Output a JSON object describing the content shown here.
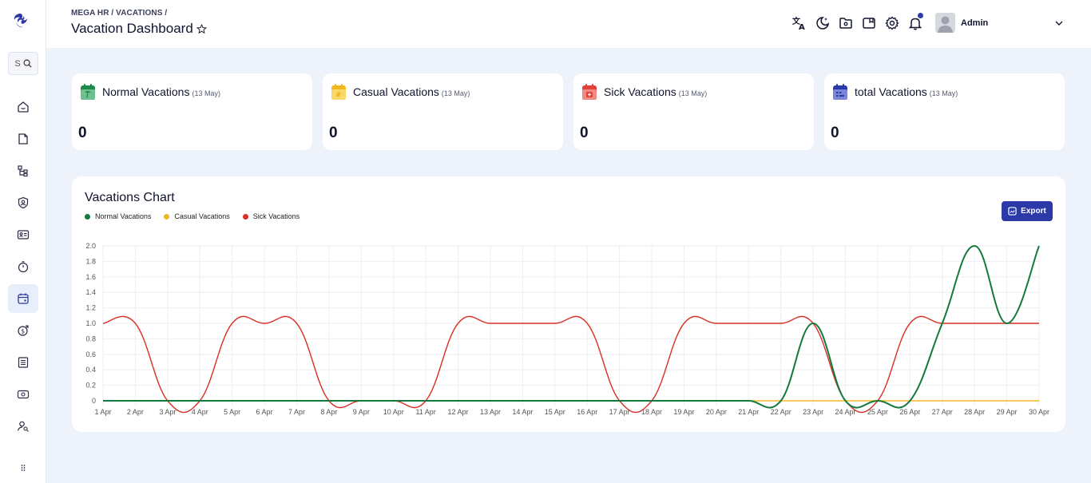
{
  "header": {
    "breadcrumb": "MEGA HR / VACATIONS /",
    "title": "Vacation Dashboard",
    "user_name": "Admin",
    "icons": [
      "translate-icon",
      "dark-mode-icon",
      "folder-icon",
      "wallet-icon",
      "settings-icon",
      "bell-icon"
    ]
  },
  "sidebar": {
    "search_placeholder": "S",
    "items": [
      "home-icon",
      "document-icon",
      "org-tree-icon",
      "contact-icon",
      "id-card-icon",
      "timer-icon",
      "calendar-icon",
      "payroll-icon",
      "list-icon",
      "money-icon",
      "user-search-icon"
    ],
    "active": "calendar-icon"
  },
  "cards": [
    {
      "title": "Normal Vacations",
      "sub": "(13 May)",
      "value": "0",
      "color": "#1e8a4c"
    },
    {
      "title": "Casual Vacations",
      "sub": "(13 May)",
      "value": "0",
      "color": "#f2b820"
    },
    {
      "title": "Sick Vacations",
      "sub": "(13 May)",
      "value": "0",
      "color": "#e0413a"
    },
    {
      "title": "total Vacations",
      "sub": "(13 May)",
      "value": "0",
      "color": "#2b3aa8"
    }
  ],
  "chart": {
    "title": "Vacations Chart",
    "export_label": "Export"
  },
  "chart_data": {
    "type": "line",
    "x": [
      "1 Apr",
      "2 Apr",
      "3 Apr",
      "4 Apr",
      "5 Apr",
      "6 Apr",
      "7 Apr",
      "8 Apr",
      "9 Apr",
      "10 Apr",
      "11 Apr",
      "12 Apr",
      "13 Apr",
      "14 Apr",
      "15 Apr",
      "16 Apr",
      "17 Apr",
      "18 Apr",
      "19 Apr",
      "20 Apr",
      "21 Apr",
      "22 Apr",
      "23 Apr",
      "24 Apr",
      "25 Apr",
      "26 Apr",
      "27 Apr",
      "28 Apr",
      "29 Apr",
      "30 Apr"
    ],
    "ylim": [
      0,
      2
    ],
    "yticks": [
      "0",
      "0.2",
      "0.4",
      "0.6",
      "0.8",
      "1.0",
      "1.2",
      "1.4",
      "1.6",
      "1.8",
      "2.0"
    ],
    "legend": "top-left",
    "grid": true,
    "series": [
      {
        "name": "Normal Vacations",
        "color": "#137a3c",
        "values": [
          0,
          0,
          0,
          0,
          0,
          0,
          0,
          0,
          0,
          0,
          0,
          0,
          0,
          0,
          0,
          0,
          0,
          0,
          0,
          0,
          0,
          0,
          1,
          0,
          0,
          0,
          1,
          2,
          1,
          2
        ]
      },
      {
        "name": "Casual Vacations",
        "color": "#f2b820",
        "values": [
          0,
          0,
          0,
          0,
          0,
          0,
          0,
          0,
          0,
          0,
          0,
          0,
          0,
          0,
          0,
          0,
          0,
          0,
          0,
          0,
          0,
          0,
          0,
          0,
          0,
          0,
          0,
          0,
          0,
          0
        ]
      },
      {
        "name": "Sick Vacations",
        "color": "#d93025",
        "values": [
          1,
          1,
          0,
          0,
          1,
          1,
          1,
          0,
          0,
          0,
          0,
          1,
          1,
          1,
          1,
          1,
          0,
          0,
          1,
          1,
          1,
          1,
          1,
          0,
          0,
          1,
          1,
          1,
          1,
          1
        ]
      }
    ]
  }
}
